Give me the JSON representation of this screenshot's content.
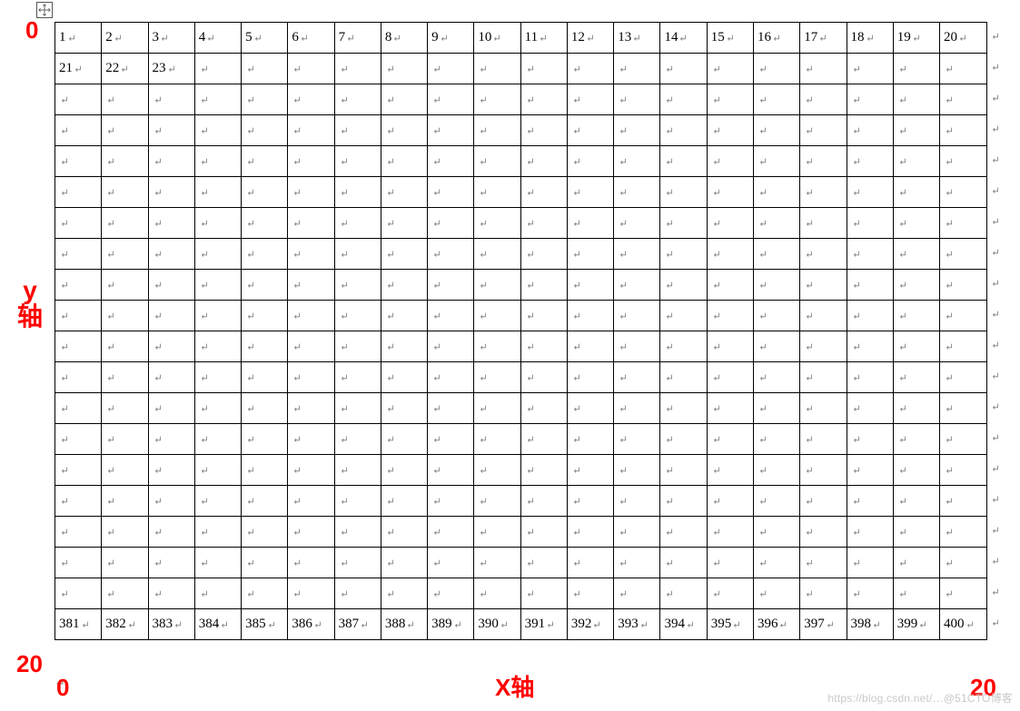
{
  "grid": {
    "rows": 20,
    "cols": 20,
    "cell_border_color": "#000000",
    "background_color": "#ffffff",
    "font_family": "Times New Roman",
    "cell_font_size": 15,
    "row1_values": [
      "1",
      "2",
      "3",
      "4",
      "5",
      "6",
      "7",
      "8",
      "9",
      "10",
      "11",
      "12",
      "13",
      "14",
      "15",
      "16",
      "17",
      "18",
      "19",
      "20"
    ],
    "row2_values": [
      "21",
      "22",
      "23",
      "",
      "",
      "",
      "",
      "",
      "",
      "",
      "",
      "",
      "",
      "",
      "",
      "",
      "",
      "",
      "",
      ""
    ],
    "row20_values": [
      "381",
      "382",
      "383",
      "384",
      "385",
      "386",
      "387",
      "388",
      "389",
      "390",
      "391",
      "392",
      "393",
      "394",
      "395",
      "396",
      "397",
      "398",
      "399",
      "400"
    ],
    "empty_rows": [
      3,
      4,
      5,
      6,
      7,
      8,
      9,
      10,
      11,
      12,
      13,
      14,
      15,
      16,
      17,
      18,
      19
    ],
    "line_end_symbol_color": "#7f7f7f"
  },
  "axis": {
    "color": "#ff0000",
    "font_size": 26,
    "font_weight": "600",
    "zero_top": "0",
    "zero_bottom_left": "0",
    "twenty_bottom_left": "20",
    "twenty_bottom_right": "20",
    "y_label_line1": "y",
    "y_label_line2": "轴",
    "x_label": "X轴"
  },
  "watermark_text": "https://blog.csdn.net/…@51CTO博客",
  "move_handle_icon": "move-icon"
}
